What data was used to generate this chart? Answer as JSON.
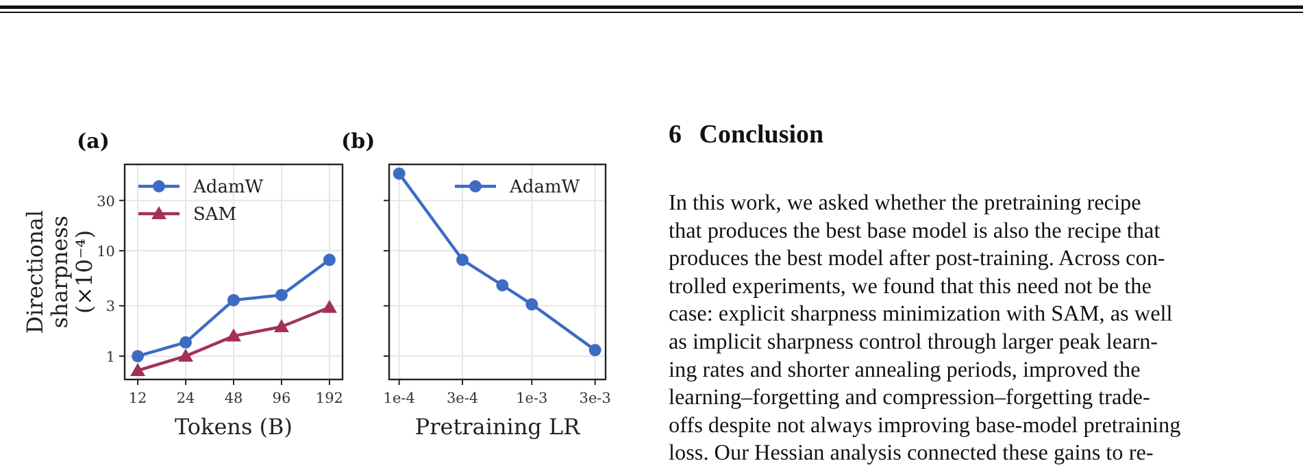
{
  "chart_data": [
    {
      "type": "line",
      "title": "(a)",
      "xlabel": "Tokens (B)",
      "ylabel": "Directional sharpness (×10⁻⁴)",
      "categories": [
        "12",
        "24",
        "48",
        "96",
        "192"
      ],
      "series": [
        {
          "name": "AdamW",
          "color": "#3d6bc4",
          "marker": "circle",
          "values": [
            1.0,
            1.35,
            3.4,
            3.8,
            8.2
          ]
        },
        {
          "name": "SAM",
          "color": "#a3305c",
          "marker": "triangle",
          "values": [
            0.73,
            1.0,
            1.55,
            1.9,
            2.9
          ]
        }
      ],
      "log": "y",
      "ylim": [
        0.6,
        66
      ],
      "yticks": [
        1,
        3,
        10,
        30
      ],
      "grid": true,
      "legend": "top left"
    },
    {
      "type": "line",
      "title": "(b)",
      "xlabel": "Pretraining LR",
      "x": [
        0.0001,
        0.0003,
        0.0006,
        0.001,
        0.003
      ],
      "series": [
        {
          "name": "AdamW",
          "color": "#3d6bc4",
          "marker": "circle",
          "values": [
            54,
            8.2,
            4.7,
            3.1,
            1.14
          ]
        }
      ],
      "log": "xy",
      "xlim": [
        8.4e-05,
        0.0036
      ],
      "xticks": [
        {
          "value": 0.0001,
          "label": "1e-4"
        },
        {
          "value": 0.0003,
          "label": "3e-4"
        },
        {
          "value": 0.001,
          "label": "1e-3"
        },
        {
          "value": 0.003,
          "label": "3e-3"
        }
      ],
      "ylim": [
        0.6,
        66
      ],
      "yticks": [
        1,
        3,
        10,
        30
      ],
      "tick_labels": "x",
      "grid": true,
      "legend": "top right"
    },
    {
      "type": "other",
      "title": "6 Conclusion",
      "annotations": [
        "In this work, we asked whether the pretraining recipe",
        "that produces the best base model is also the recipe that",
        "produces the best model after post-training. Across con-",
        "trolled experiments, we found that this need not be the",
        "case: explicit sharpness minimization with SAM, as well",
        "as implicit sharpness control through larger peak learn-",
        "ing rates and shorter annealing periods, improved the",
        "learning–forgetting and compression–forgetting trade-",
        "offs despite not always improving base-model pretraining",
        "loss. Our Hessian analysis connected these gains to re-"
      ]
    }
  ]
}
